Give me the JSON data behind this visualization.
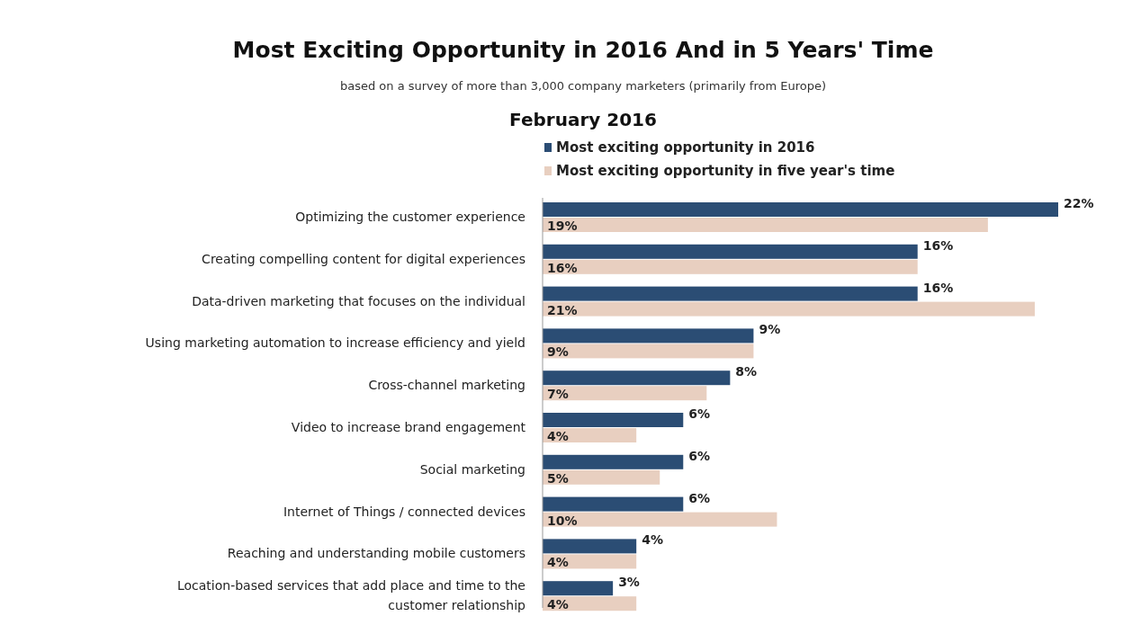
{
  "chart_data": {
    "type": "bar",
    "orientation": "horizontal",
    "title": "Most Exciting Opportunity in 2016 And in 5 Years' Time",
    "subtitle": "based on a survey of more than 3,000 company marketers (primarily from Europe)",
    "annotations": [
      "February 2016"
    ],
    "categories": [
      "Optimizing the customer experience",
      "Creating compelling content for digital experiences",
      "Data-driven marketing that focuses on the individual",
      "Using marketing automation to increase efficiency and yield",
      "Cross-channel marketing",
      "Video to increase brand engagement",
      "Social marketing",
      "Internet of Things / connected devices",
      "Reaching and understanding mobile customers",
      "Location-based services that add place and time to the customer relationship"
    ],
    "series": [
      {
        "name": "Most exciting opportunity in 2016",
        "color": "#2b4d74",
        "values": [
          22,
          16,
          16,
          9,
          8,
          6,
          6,
          6,
          4,
          3
        ],
        "value_labels": [
          "22%",
          "16%",
          "16%",
          "9%",
          "8%",
          "6%",
          "6%",
          "6%",
          "4%",
          "3%"
        ]
      },
      {
        "name": "Most exciting opportunity in five year's time",
        "color": "#e8cfc0",
        "values": [
          19,
          16,
          21,
          9,
          7,
          4,
          5,
          10,
          4,
          4
        ],
        "value_labels": [
          "19%",
          "16%",
          "21%",
          "9%",
          "7%",
          "4%",
          "5%",
          "10%",
          "4%",
          "4%"
        ]
      }
    ],
    "legend": "top"
  }
}
